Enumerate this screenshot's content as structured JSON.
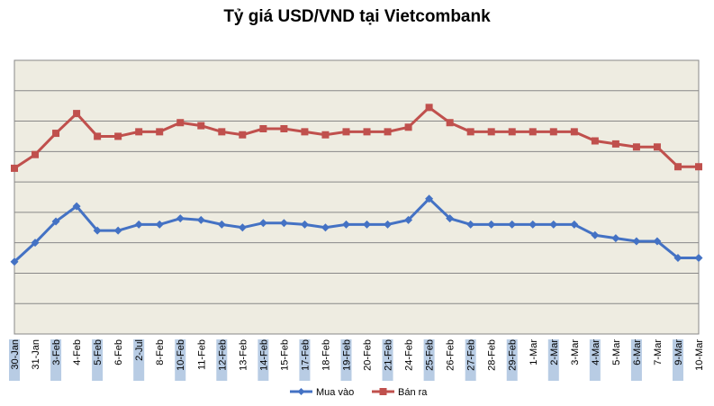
{
  "chart_data": {
    "type": "line",
    "title": "Tỷ giá USD/VND tại Vietcombank",
    "xlabel": "",
    "ylabel": "",
    "categories": [
      "30-Jan",
      "31-Jan",
      "3-Feb",
      "4-Feb",
      "5-Feb",
      "6-Feb",
      "2-Jul",
      "8-Feb",
      "10-Feb",
      "11-Feb",
      "12-Feb",
      "13-Feb",
      "14-Feb",
      "15-Feb",
      "17-Feb",
      "18-Feb",
      "19-Feb",
      "20-Feb",
      "21-Feb",
      "24-Feb",
      "25-Feb",
      "26-Feb",
      "27-Feb",
      "28-Feb",
      "29-Feb",
      "1-Mar",
      "2-Mar",
      "3-Mar",
      "4-Mar",
      "5-Mar",
      "6-Mar",
      "7-Mar",
      "9-Mar",
      "10-Mar"
    ],
    "series": [
      {
        "name": "Mua vào",
        "color": "#4472C4",
        "marker": "diamond",
        "values": [
          21095,
          21120,
          21148,
          21168,
          21136,
          21136,
          21144,
          21144,
          21152,
          21150,
          21144,
          21140,
          21146,
          21146,
          21144,
          21140,
          21144,
          21144,
          21144,
          21150,
          21178,
          21152,
          21144,
          21144,
          21144,
          21144,
          21144,
          21144,
          21130,
          21126,
          21122,
          21122,
          21100,
          21100
        ]
      },
      {
        "name": "Bán ra",
        "color": "#C0504D",
        "marker": "square",
        "values": [
          21218,
          21236,
          21264,
          21290,
          21260,
          21260,
          21266,
          21266,
          21278,
          21274,
          21266,
          21262,
          21270,
          21270,
          21266,
          21262,
          21266,
          21266,
          21266,
          21272,
          21298,
          21278,
          21266,
          21266,
          21266,
          21266,
          21266,
          21266,
          21254,
          21250,
          21246,
          21246,
          21220,
          21220
        ]
      }
    ],
    "ylim": [
      21000,
      21360
    ],
    "y_step": 40,
    "grid": true,
    "legend_position": "bottom-center",
    "plot_background": "#EEECE1"
  }
}
